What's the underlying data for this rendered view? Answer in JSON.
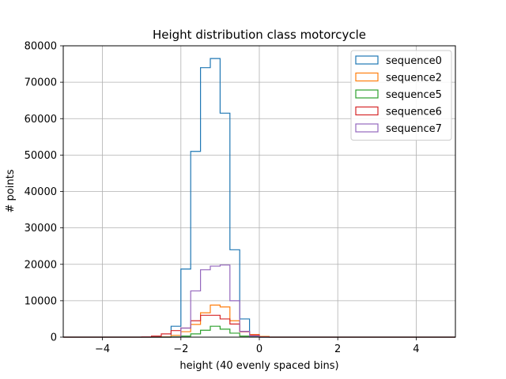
{
  "chart_data": {
    "type": "histogram",
    "title": "Height distribution class motorcycle",
    "xlabel": "height (40 evenly spaced bins)",
    "ylabel": "# points",
    "xlim": [
      -5,
      5
    ],
    "ylim": [
      0,
      80000
    ],
    "x_ticks": [
      -4,
      -2,
      0,
      2,
      4
    ],
    "y_ticks": [
      0,
      10000,
      20000,
      30000,
      40000,
      50000,
      60000,
      70000,
      80000
    ],
    "grid": true,
    "legend_position": "top-right",
    "bin_edges": [
      -5,
      -4.75,
      -4.5,
      -4.25,
      -4,
      -3.75,
      -3.5,
      -3.25,
      -3,
      -2.75,
      -2.5,
      -2.25,
      -2,
      -1.75,
      -1.5,
      -1.25,
      -1,
      -0.75,
      -0.5,
      -0.25,
      0,
      0.25,
      0.5,
      0.75,
      1,
      1.25,
      1.5,
      1.75,
      2,
      2.25,
      2.5,
      2.75,
      3,
      3.25,
      3.5,
      3.75,
      4,
      4.25,
      4.5,
      4.75,
      5
    ],
    "series": [
      {
        "name": "sequence0",
        "color": "#1f77b4",
        "values": [
          0,
          0,
          0,
          0,
          0,
          0,
          0,
          0,
          0,
          0,
          0,
          3000,
          18700,
          51000,
          74000,
          76500,
          61500,
          24000,
          5000,
          200,
          0,
          0,
          0,
          0,
          0,
          0,
          0,
          0,
          0,
          0,
          0,
          0,
          0,
          0,
          0,
          0,
          0,
          0,
          0,
          0
        ]
      },
      {
        "name": "sequence2",
        "color": "#ff7f0e",
        "values": [
          0,
          0,
          0,
          0,
          0,
          0,
          0,
          0,
          0,
          0,
          100,
          500,
          1500,
          3500,
          6700,
          8800,
          8300,
          4500,
          1500,
          700,
          200,
          0,
          0,
          0,
          0,
          0,
          0,
          0,
          0,
          0,
          0,
          0,
          0,
          0,
          0,
          0,
          0,
          0,
          0,
          0
        ]
      },
      {
        "name": "sequence5",
        "color": "#2ca02c",
        "values": [
          0,
          0,
          0,
          0,
          0,
          0,
          0,
          0,
          0,
          0,
          0,
          100,
          300,
          900,
          1900,
          3000,
          2200,
          1100,
          300,
          100,
          0,
          0,
          0,
          0,
          0,
          0,
          0,
          0,
          0,
          0,
          0,
          0,
          0,
          0,
          0,
          0,
          0,
          0,
          0,
          0
        ]
      },
      {
        "name": "sequence6",
        "color": "#d62728",
        "values": [
          0,
          0,
          0,
          0,
          0,
          0,
          0,
          0,
          100,
          300,
          900,
          1800,
          2500,
          4500,
          6000,
          6000,
          5000,
          3600,
          1500,
          600,
          100,
          0,
          0,
          0,
          0,
          0,
          0,
          0,
          0,
          0,
          0,
          0,
          0,
          0,
          0,
          0,
          0,
          0,
          0,
          0
        ]
      },
      {
        "name": "sequence7",
        "color": "#9467bd",
        "values": [
          0,
          0,
          0,
          0,
          0,
          0,
          0,
          0,
          0,
          0,
          0,
          0,
          2500,
          12700,
          18500,
          19500,
          19800,
          10000,
          1600,
          300,
          0,
          0,
          0,
          0,
          0,
          0,
          0,
          0,
          0,
          0,
          0,
          0,
          0,
          0,
          0,
          0,
          0,
          0,
          0,
          0
        ]
      }
    ]
  }
}
